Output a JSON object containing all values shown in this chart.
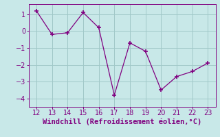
{
  "x": [
    12,
    13,
    14,
    15,
    16,
    17,
    18,
    19,
    20,
    21,
    22,
    23
  ],
  "y": [
    1.2,
    -0.2,
    -0.1,
    1.1,
    0.2,
    -3.8,
    -0.7,
    -1.2,
    -3.5,
    -2.7,
    -2.4,
    -1.9
  ],
  "line_color": "#800080",
  "marker_color": "#800080",
  "background_color": "#c8e8e8",
  "grid_color": "#a0c8c8",
  "xlabel": "Windchill (Refroidissement éolien,°C)",
  "xlim": [
    11.5,
    23.5
  ],
  "ylim": [
    -4.5,
    1.6
  ],
  "yticks": [
    -4,
    -3,
    -2,
    -1,
    0,
    1
  ],
  "xticks": [
    12,
    13,
    14,
    15,
    16,
    17,
    18,
    19,
    20,
    21,
    22,
    23
  ],
  "tick_color": "#800080",
  "label_color": "#800080",
  "xlabel_fontsize": 7.5,
  "tick_fontsize": 7
}
